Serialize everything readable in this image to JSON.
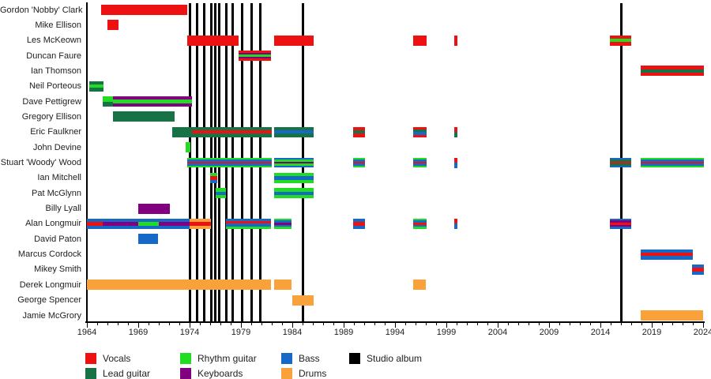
{
  "chart_data": {
    "type": "timeline-gantt",
    "description": "Band members timeline with instrument roles and studio album release markers",
    "x_axis": {
      "start": 1964,
      "end": 2024,
      "major_tick_interval": 5,
      "minor_tick_interval": 1,
      "major_tick_labels": [
        "1964",
        "1969",
        "1974",
        "1979",
        "1984",
        "1989",
        "1994",
        "1999",
        "2004",
        "2009",
        "2014",
        "2019",
        "2024"
      ]
    },
    "colors": {
      "vocals": "#ee1111",
      "lead_guitar": "#177245",
      "rhythm_guitar": "#21dd21",
      "keyboards": "#800080",
      "bass": "#1569c7",
      "drums": "#f9a13a",
      "studio_album": "#000000"
    },
    "legend": [
      {
        "key": "vocals",
        "label": "Vocals"
      },
      {
        "key": "lead_guitar",
        "label": "Lead guitar"
      },
      {
        "key": "rhythm_guitar",
        "label": "Rhythm guitar"
      },
      {
        "key": "keyboards",
        "label": "Keyboards"
      },
      {
        "key": "bass",
        "label": "Bass"
      },
      {
        "key": "drums",
        "label": "Drums"
      },
      {
        "key": "studio_album",
        "label": "Studio album"
      }
    ],
    "album_years": [
      1974.05,
      1974.75,
      1975.4,
      1976.1,
      1976.5,
      1976.9,
      1977.6,
      1978.2,
      1979.1,
      1980.0,
      1980.9,
      1985.0,
      2016.0
    ],
    "members": [
      {
        "name": "Gordon 'Nobby' Clark",
        "bars": [
          {
            "start": 1965.4,
            "end": 1973.8,
            "stripes": [
              "vocals"
            ]
          }
        ]
      },
      {
        "name": "Mike Ellison",
        "bars": [
          {
            "start": 1966.0,
            "end": 1967.1,
            "stripes": [
              "vocals"
            ]
          }
        ]
      },
      {
        "name": "Les McKeown",
        "bars": [
          {
            "start": 1973.8,
            "end": 1978.8,
            "stripes": [
              "vocals"
            ]
          },
          {
            "start": 1982.2,
            "end": 1986.1,
            "stripes": [
              "vocals"
            ]
          },
          {
            "start": 1995.8,
            "end": 1997.1,
            "stripes": [
              "vocals"
            ]
          },
          {
            "start": 1999.8,
            "end": 2000.1,
            "stripes": [
              "vocals"
            ]
          },
          {
            "start": 2014.9,
            "end": 2017.0,
            "stripes": [
              "vocals",
              "rhythm_guitar",
              "vocals"
            ]
          }
        ]
      },
      {
        "name": "Duncan Faure",
        "bars": [
          {
            "start": 1978.8,
            "end": 1981.9,
            "stripes": [
              "vocals",
              "keyboards",
              "rhythm_guitar",
              "keyboards",
              "vocals"
            ]
          }
        ]
      },
      {
        "name": "Ian Thomson",
        "bars": [
          {
            "start": 2017.9,
            "end": 2024.1,
            "stripes": [
              "vocals",
              "lead_guitar",
              "vocals"
            ]
          }
        ]
      },
      {
        "name": "Neil Porteous",
        "bars": [
          {
            "start": 1964.2,
            "end": 1965.6,
            "stripes": [
              "lead_guitar",
              "rhythm_guitar",
              "lead_guitar"
            ]
          }
        ]
      },
      {
        "name": "Dave Pettigrew",
        "bars": [
          {
            "start": 1965.5,
            "end": 1966.5,
            "stripes": [
              "rhythm_guitar",
              "lead_guitar"
            ]
          },
          {
            "start": 1966.5,
            "end": 1974.2,
            "stripes": [
              "keyboards",
              "rhythm_guitar",
              "keyboards"
            ]
          }
        ]
      },
      {
        "name": "Gregory Ellison",
        "bars": [
          {
            "start": 1966.5,
            "end": 1972.5,
            "stripes": [
              "lead_guitar"
            ]
          }
        ]
      },
      {
        "name": "Eric Faulkner",
        "bars": [
          {
            "start": 1972.3,
            "end": 1974.2,
            "stripes": [
              "lead_guitar"
            ]
          },
          {
            "start": 1974.2,
            "end": 1982.0,
            "stripes": [
              "lead_guitar",
              "vocals",
              "lead_guitar"
            ]
          },
          {
            "start": 1982.2,
            "end": 1986.1,
            "stripes": [
              "lead_guitar",
              "bass",
              "lead_guitar"
            ]
          },
          {
            "start": 1989.9,
            "end": 1991.1,
            "stripes": [
              "vocals",
              "lead_guitar",
              "vocals"
            ]
          },
          {
            "start": 1995.8,
            "end": 1997.1,
            "stripes": [
              "vocals",
              "lead_guitar",
              "bass",
              "vocals"
            ]
          },
          {
            "start": 1999.8,
            "end": 2000.1,
            "stripes": [
              "vocals",
              "lead_guitar"
            ]
          }
        ]
      },
      {
        "name": "John Devine",
        "bars": [
          {
            "start": 1973.6,
            "end": 1974.1,
            "stripes": [
              "rhythm_guitar"
            ]
          }
        ]
      },
      {
        "name": "Stuart 'Woody' Wood",
        "bars": [
          {
            "start": 1973.8,
            "end": 1982.0,
            "stripes": [
              "rhythm_guitar",
              "bass",
              "vocals",
              "bass",
              "rhythm_guitar"
            ]
          },
          {
            "start": 1982.2,
            "end": 1986.1,
            "stripes": [
              "bass",
              "rhythm_guitar",
              "keyboards",
              "rhythm_guitar",
              "bass"
            ]
          },
          {
            "start": 1989.9,
            "end": 1991.1,
            "stripes": [
              "rhythm_guitar",
              "bass",
              "vocals",
              "bass",
              "rhythm_guitar"
            ]
          },
          {
            "start": 1995.8,
            "end": 1997.1,
            "stripes": [
              "rhythm_guitar",
              "bass",
              "vocals",
              "bass",
              "rhythm_guitar"
            ]
          },
          {
            "start": 1999.8,
            "end": 2000.1,
            "stripes": [
              "vocals",
              "bass"
            ]
          },
          {
            "start": 2014.9,
            "end": 2017.0,
            "stripes": [
              "bass",
              "lead_guitar",
              "vocals",
              "lead_guitar",
              "bass"
            ]
          },
          {
            "start": 2017.9,
            "end": 2024.1,
            "stripes": [
              "rhythm_guitar",
              "bass",
              "vocals",
              "bass",
              "rhythm_guitar"
            ]
          }
        ]
      },
      {
        "name": "Ian Mitchell",
        "bars": [
          {
            "start": 1976.0,
            "end": 1976.7,
            "stripes": [
              "rhythm_guitar",
              "vocals",
              "bass"
            ]
          },
          {
            "start": 1982.2,
            "end": 1986.1,
            "stripes": [
              "rhythm_guitar",
              "bass",
              "rhythm_guitar"
            ]
          }
        ]
      },
      {
        "name": "Pat McGlynn",
        "bars": [
          {
            "start": 1976.5,
            "end": 1977.5,
            "stripes": [
              "rhythm_guitar",
              "bass",
              "rhythm_guitar"
            ]
          },
          {
            "start": 1982.2,
            "end": 1986.1,
            "stripes": [
              "rhythm_guitar",
              "bass",
              "rhythm_guitar"
            ]
          }
        ]
      },
      {
        "name": "Billy Lyall",
        "bars": [
          {
            "start": 1969.0,
            "end": 1972.1,
            "stripes": [
              "keyboards"
            ]
          }
        ]
      },
      {
        "name": "Alan Longmuir",
        "bars": [
          {
            "start": 1964.0,
            "end": 1965.5,
            "stripes": [
              "bass",
              "vocals",
              "bass"
            ]
          },
          {
            "start": 1965.5,
            "end": 1969.0,
            "stripes": [
              "bass",
              "keyboards",
              "bass"
            ]
          },
          {
            "start": 1969.0,
            "end": 1971.0,
            "stripes": [
              "bass",
              "rhythm_guitar",
              "bass"
            ]
          },
          {
            "start": 1971.0,
            "end": 1974.0,
            "stripes": [
              "bass",
              "keyboards",
              "bass"
            ]
          },
          {
            "start": 1974.0,
            "end": 1976.1,
            "stripes": [
              "drums",
              "vocals",
              "drums"
            ]
          },
          {
            "start": 1977.5,
            "end": 1981.9,
            "stripes": [
              "bass",
              "vocals",
              "bass",
              "rhythm_guitar"
            ]
          },
          {
            "start": 1982.2,
            "end": 1983.9,
            "stripes": [
              "rhythm_guitar",
              "bass",
              "keyboards",
              "bass",
              "rhythm_guitar"
            ]
          },
          {
            "start": 1989.9,
            "end": 1991.1,
            "stripes": [
              "bass",
              "vocals",
              "bass"
            ]
          },
          {
            "start": 1995.8,
            "end": 1997.1,
            "stripes": [
              "rhythm_guitar",
              "bass",
              "vocals",
              "bass",
              "rhythm_guitar"
            ]
          },
          {
            "start": 1999.8,
            "end": 2000.1,
            "stripes": [
              "vocals",
              "bass"
            ]
          },
          {
            "start": 2014.9,
            "end": 2017.0,
            "stripes": [
              "bass",
              "keyboards",
              "vocals",
              "keyboards",
              "bass"
            ]
          }
        ]
      },
      {
        "name": "David Paton",
        "bars": [
          {
            "start": 1969.0,
            "end": 1970.9,
            "stripes": [
              "bass"
            ]
          }
        ]
      },
      {
        "name": "Marcus Cordock",
        "bars": [
          {
            "start": 2017.9,
            "end": 2023.0,
            "stripes": [
              "bass",
              "vocals",
              "bass"
            ]
          }
        ]
      },
      {
        "name": "Mikey Smith",
        "bars": [
          {
            "start": 2022.9,
            "end": 2024.1,
            "stripes": [
              "bass",
              "vocals",
              "bass"
            ]
          }
        ]
      },
      {
        "name": "Derek Longmuir",
        "bars": [
          {
            "start": 1964.0,
            "end": 1981.9,
            "stripes": [
              "drums"
            ]
          },
          {
            "start": 1982.2,
            "end": 1983.9,
            "stripes": [
              "drums"
            ]
          },
          {
            "start": 1995.8,
            "end": 1997.0,
            "stripes": [
              "drums"
            ]
          }
        ]
      },
      {
        "name": "George Spencer",
        "bars": [
          {
            "start": 1984.0,
            "end": 1986.1,
            "stripes": [
              "drums"
            ]
          }
        ]
      },
      {
        "name": "Jamie McGrory",
        "bars": [
          {
            "start": 2017.9,
            "end": 2024.0,
            "stripes": [
              "drums"
            ]
          }
        ]
      }
    ]
  }
}
